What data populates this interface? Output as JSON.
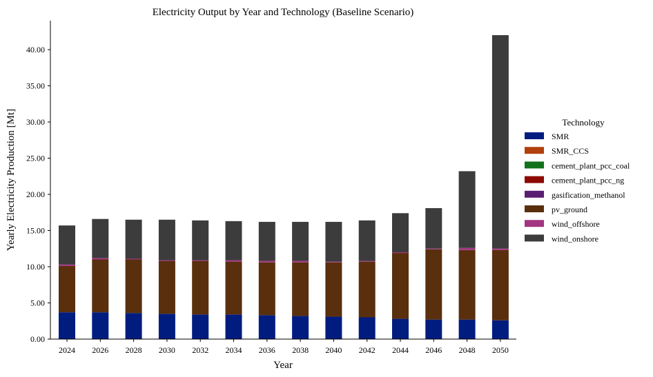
{
  "chart_data": {
    "type": "bar",
    "stacked": true,
    "title": "Electricity Output by Year and Technology (Baseline Scenario)",
    "xlabel": "Year",
    "ylabel": "Yearly Electricity Production [Mt]",
    "ylim": [
      0,
      44
    ],
    "yticks": [
      "0.00",
      "5.00",
      "10.00",
      "15.00",
      "20.00",
      "25.00",
      "30.00",
      "35.00",
      "40.00"
    ],
    "ytick_values": [
      0,
      5,
      10,
      15,
      20,
      25,
      30,
      35,
      40
    ],
    "grid": false,
    "legend_title": "Technology",
    "legend_position": "right",
    "categories": [
      "2024",
      "2026",
      "2028",
      "2030",
      "2032",
      "2034",
      "2036",
      "2038",
      "2040",
      "2042",
      "2044",
      "2046",
      "2048",
      "2050"
    ],
    "series": [
      {
        "name": "SMR",
        "color": "#001c7f",
        "values": [
          3.7,
          3.7,
          3.6,
          3.5,
          3.4,
          3.4,
          3.3,
          3.2,
          3.1,
          3.0,
          2.8,
          2.7,
          2.7,
          2.6
        ]
      },
      {
        "name": "SMR_CCS",
        "color": "#b1400d",
        "values": [
          0,
          0,
          0,
          0,
          0,
          0,
          0,
          0,
          0,
          0,
          0,
          0,
          0,
          0
        ]
      },
      {
        "name": "cement_plant_pcc_coal",
        "color": "#12711c",
        "values": [
          0,
          0,
          0,
          0,
          0,
          0,
          0,
          0,
          0,
          0,
          0,
          0,
          0,
          0
        ]
      },
      {
        "name": "cement_plant_pcc_ng",
        "color": "#8c0800",
        "values": [
          0,
          0,
          0,
          0,
          0,
          0,
          0,
          0,
          0,
          0,
          0,
          0,
          0,
          0
        ]
      },
      {
        "name": "gasification_methanol",
        "color": "#591e71",
        "values": [
          0,
          0,
          0,
          0,
          0,
          0,
          0,
          0,
          0,
          0,
          0,
          0,
          0,
          0
        ]
      },
      {
        "name": "pv_ground",
        "color": "#592f0d",
        "values": [
          6.4,
          7.3,
          7.4,
          7.3,
          7.4,
          7.3,
          7.3,
          7.4,
          7.5,
          7.7,
          9.1,
          9.7,
          9.6,
          9.7
        ]
      },
      {
        "name": "wind_offshore",
        "color": "#a23582",
        "values": [
          0.2,
          0.2,
          0.1,
          0.1,
          0.1,
          0.2,
          0.2,
          0.2,
          0.1,
          0.1,
          0.1,
          0.1,
          0.3,
          0.2
        ]
      },
      {
        "name": "wind_onshore",
        "color": "#3c3c3c",
        "values": [
          5.4,
          5.4,
          5.4,
          5.6,
          5.5,
          5.4,
          5.4,
          5.4,
          5.5,
          5.6,
          5.4,
          5.6,
          10.6,
          29.5
        ]
      }
    ]
  }
}
